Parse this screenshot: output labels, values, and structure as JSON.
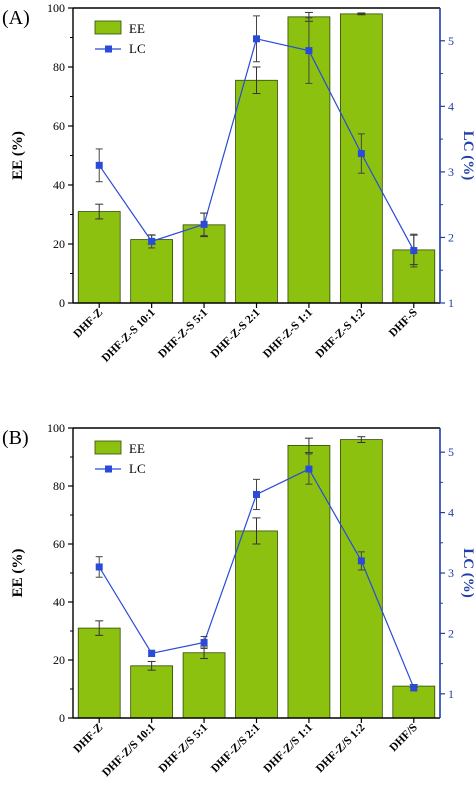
{
  "chart_data": [
    {
      "type": "bar+line",
      "panel_label": "(A)",
      "categories": [
        "DHF-Z",
        "DHF-Z-S 10:1",
        "DHF-Z-S 5:1",
        "DHF-Z-S 2:1",
        "DHF-Z-S 1:1",
        "DHF-Z-S 1:2",
        "DHF-S"
      ],
      "series": [
        {
          "name": "EE",
          "type": "bar",
          "axis": "left",
          "values": [
            31,
            21.5,
            26.5,
            75.5,
            97,
            98,
            18
          ],
          "errors": [
            2.5,
            1.5,
            4,
            4.5,
            1.5,
            0.3,
            5
          ]
        },
        {
          "name": "LC",
          "type": "line",
          "axis": "right",
          "values": [
            3.1,
            1.94,
            2.2,
            5.03,
            4.85,
            3.28,
            1.8
          ],
          "errors": [
            0.25,
            0.1,
            0.17,
            0.35,
            0.5,
            0.3,
            0.25
          ]
        }
      ],
      "ylabel": "EE (%)",
      "ylim": [
        0,
        100
      ],
      "yticks": [
        0,
        20,
        40,
        60,
        80,
        100
      ],
      "y2label": "LC (%)",
      "y2lim": [
        1,
        5.5
      ],
      "y2ticks": [
        1,
        2,
        3,
        4,
        5
      ],
      "legend": {
        "placement": "top-left",
        "entries": [
          "EE",
          "LC"
        ]
      }
    },
    {
      "type": "bar+line",
      "panel_label": "(B)",
      "categories": [
        "DHF-Z",
        "DHF-Z/S 10:1",
        "DHF-Z/S 5:1",
        "DHF-Z/S 2:1",
        "DHF-Z/S 1:1",
        "DHF-Z/S 1:2",
        "DHF/S"
      ],
      "series": [
        {
          "name": "EE",
          "type": "bar",
          "axis": "left",
          "values": [
            31,
            18,
            22.5,
            64.5,
            94,
            96,
            11
          ],
          "errors": [
            2.5,
            1.5,
            2,
            4.5,
            2.5,
            1,
            0.5
          ]
        },
        {
          "name": "LC",
          "type": "line",
          "axis": "right",
          "values": [
            3.1,
            1.67,
            1.85,
            4.3,
            4.72,
            3.2,
            1.1
          ],
          "errors": [
            0.17,
            0.05,
            0.1,
            0.25,
            0.25,
            0.15,
            0.05
          ]
        }
      ],
      "ylabel": "EE (%)",
      "ylim": [
        0,
        100
      ],
      "yticks": [
        0,
        20,
        40,
        60,
        80,
        100
      ],
      "y2label": "LC (%)",
      "y2lim": [
        0.6,
        5.4
      ],
      "y2ticks": [
        1,
        2,
        3,
        4,
        5
      ],
      "legend": {
        "placement": "top-left",
        "entries": [
          "EE",
          "LC"
        ]
      }
    }
  ],
  "colors": {
    "bar_fill": "#8cc20f",
    "bar_stroke": "#2f4a07",
    "line": "#2a4bd8",
    "right_axis": "#1f3fa8"
  }
}
